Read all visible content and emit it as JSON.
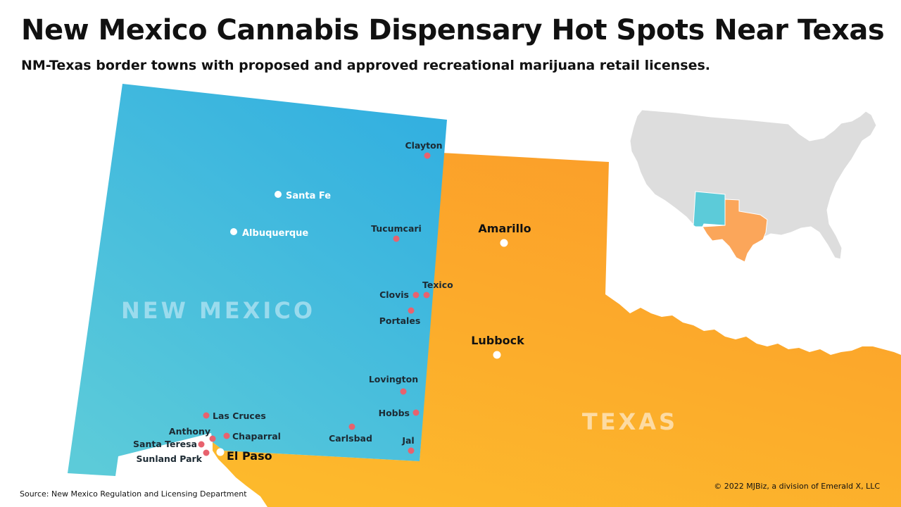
{
  "header": {
    "title": "New Mexico Cannabis Dispensary Hot Spots Near Texas",
    "subtitle": "NM-Texas border towns with proposed and approved recreational marijuana retail licenses."
  },
  "footer": {
    "source": "Source: New Mexico Regulation and Licensing Department",
    "copyright": "© 2022 MJBiz, a division of Emerald X, LLC"
  },
  "map": {
    "states": {
      "new_mexico": {
        "label": "NEW MEXICO",
        "color_top": "#33b0e0",
        "color_bottom": "#5ccbd9"
      },
      "texas": {
        "label": "TEXAS",
        "color_top": "#fba32c",
        "color_bottom": "#fdb62c"
      }
    },
    "inset": {
      "us_color": "#dddddd",
      "nm_color": "#5ccbd9",
      "tx_color": "#fba65a"
    },
    "marker_colors": {
      "town": "#e8626e",
      "city": "#ffffff"
    },
    "towns": [
      "Clayton",
      "Tucumcari",
      "Texico",
      "Clovis",
      "Portales",
      "Lovington",
      "Hobbs",
      "Jal",
      "Carlsbad",
      "Las Cruces",
      "Anthony",
      "Chaparral",
      "Santa Teresa",
      "Sunland Park"
    ],
    "nm_cities": [
      "Santa Fe",
      "Albuquerque"
    ],
    "tx_cities": [
      "Amarillo",
      "Lubbock",
      "El Paso"
    ]
  }
}
